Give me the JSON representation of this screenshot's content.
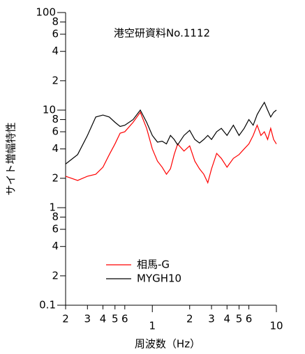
{
  "chart_data": {
    "type": "line",
    "title": "港空研資料No.1112",
    "x_label": "周波数（Hz）",
    "y_label": "サイト増幅特性",
    "xscale": "log",
    "yscale": "log",
    "legend": "lower-left",
    "xlim": [
      0.2,
      10
    ],
    "ylim": [
      0.1,
      100
    ],
    "xticks": [
      {
        "value": 0.2,
        "label": "2"
      },
      {
        "value": 0.3,
        "label": "3"
      },
      {
        "value": 0.4,
        "label": "4"
      },
      {
        "value": 0.5,
        "label": "5"
      },
      {
        "value": 0.6,
        "label": "6"
      },
      1,
      {
        "value": 2,
        "label": "2"
      },
      {
        "value": 3,
        "label": "3"
      },
      {
        "value": 4,
        "label": "4"
      },
      {
        "value": 5,
        "label": "5"
      },
      {
        "value": 6,
        "label": "6"
      },
      10
    ],
    "yticks": [
      {
        "value": 0.1,
        "label": "0.1"
      },
      {
        "value": 0.2,
        "label": "2"
      },
      {
        "value": 0.4,
        "label": "4"
      },
      {
        "value": 0.6,
        "label": "6"
      },
      {
        "value": 0.8,
        "label": "8"
      },
      1,
      2,
      4,
      6,
      8,
      10,
      {
        "value": 20,
        "label": "2"
      },
      {
        "value": 40,
        "label": "4"
      },
      {
        "value": 60,
        "label": "6"
      },
      {
        "value": 80,
        "label": "8"
      },
      100
    ],
    "x": [
      0.2,
      0.25,
      0.3,
      0.35,
      0.4,
      0.45,
      0.5,
      0.55,
      0.6,
      0.7,
      0.8,
      0.9,
      1,
      1.1,
      1.2,
      1.3,
      1.4,
      1.5,
      1.6,
      1.8,
      2,
      2.2,
      2.4,
      2.6,
      2.8,
      3,
      3.3,
      3.6,
      4,
      4.5,
      5,
      5.5,
      6,
      6.5,
      7,
      7.5,
      8,
      8.5,
      9,
      9.5,
      10
    ],
    "series": [
      {
        "name": "相馬-G",
        "color": "#ff0000",
        "values": [
          2.1,
          1.9,
          2.1,
          2.2,
          2.6,
          3.5,
          4.5,
          5.8,
          6.0,
          7.5,
          9.5,
          6.5,
          4.0,
          3.0,
          2.6,
          2.2,
          2.5,
          3.5,
          4.5,
          3.8,
          4.3,
          3.0,
          2.5,
          2.2,
          1.8,
          2.5,
          3.6,
          3.2,
          2.6,
          3.2,
          3.5,
          4.0,
          4.5,
          5.5,
          7.0,
          5.5,
          6.0,
          5.0,
          6.5,
          5.0,
          4.5
        ]
      },
      {
        "name": "MYGH10",
        "color": "#000000",
        "values": [
          2.8,
          3.5,
          5.5,
          8.5,
          8.9,
          8.5,
          7.5,
          6.8,
          7.0,
          8.0,
          10.0,
          7.5,
          5.5,
          4.7,
          4.8,
          4.5,
          5.5,
          5.0,
          4.4,
          5.5,
          6.2,
          5.0,
          4.6,
          5.0,
          5.5,
          5.0,
          6.0,
          6.5,
          5.5,
          7.0,
          5.5,
          6.5,
          8.0,
          7.0,
          9.0,
          10.5,
          12.0,
          10.0,
          8.5,
          9.5,
          10.0
        ]
      }
    ]
  }
}
